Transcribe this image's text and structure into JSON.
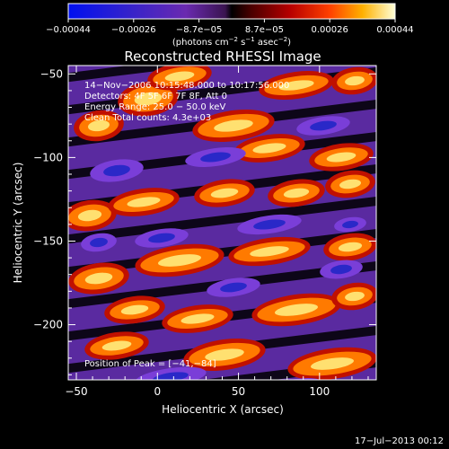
{
  "chart_data": {
    "type": "heatmap",
    "title": "Reconstructed RHESSI Image",
    "xlabel": "Heliocentric X (arcsec)",
    "ylabel": "Heliocentric Y (arcsec)",
    "xlim": [
      -55,
      135
    ],
    "ylim": [
      -233,
      -45
    ],
    "x_ticks": [
      -50,
      0,
      50,
      100
    ],
    "y_ticks": [
      -50,
      -100,
      -150,
      -200
    ],
    "x_tick_labels": [
      "−50",
      "0",
      "50",
      "100"
    ],
    "y_tick_labels": [
      "−50",
      "−100",
      "−150",
      "−200"
    ],
    "grid": false,
    "colorscale": "red-temperature with blue/purple negative",
    "colorbar": {
      "range": [
        -0.00044,
        0.00044
      ],
      "tick_labels": [
        "−0.00044",
        "−0.00026",
        "−8.7e−05",
        "8.7e−05",
        "0.00026",
        "0.00044"
      ],
      "units_html_parts": [
        "(photons cm",
        "−2",
        " s",
        "−1",
        " asec",
        "−2",
        ")"
      ]
    },
    "annotations": [
      "14−Nov−2006 10:15:48.000 to 10:17:56.000",
      "Detectors: 4F 5F 6F 7F 8F, Att 0",
      "Energy Range: 25.0 − 50.0 keV",
      "Clean    Total counts: 4.3e+03"
    ],
    "peak_label": "Position of Peak = [−41,−84]",
    "timestamp": "17−Jul−2013 00:12"
  }
}
